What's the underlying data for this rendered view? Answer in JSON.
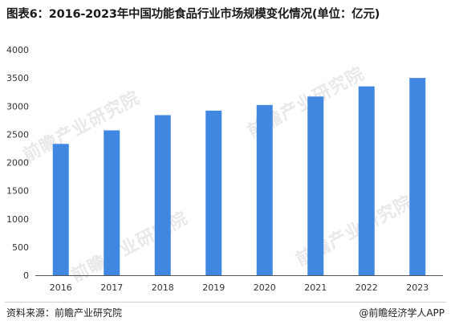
{
  "title": "图表6：2016-2023年中国功能食品行业市场规模变化情况(单位：亿元)",
  "watermark": "前瞻产业研究院",
  "source": "资料来源：前瞻产业研究院",
  "credit": "@前瞻经济学人APP",
  "colors": {
    "bar": "#3F87E0",
    "axis": "#555555",
    "tick_text": "#333333"
  },
  "chart_data": {
    "type": "bar",
    "title": "图表6：2016-2023年中国功能食品行业市场规模变化情况(单位：亿元)",
    "categories": [
      "2016",
      "2017",
      "2018",
      "2019",
      "2020",
      "2021",
      "2022",
      "2023"
    ],
    "values": [
      2330,
      2570,
      2840,
      2920,
      3020,
      3170,
      3350,
      3500
    ],
    "ylim": [
      0,
      4000
    ],
    "yticks": [
      0,
      500,
      1000,
      1500,
      2000,
      2500,
      3000,
      3500,
      4000
    ],
    "xlabel": "",
    "ylabel": "",
    "grid": false,
    "legend": "none"
  }
}
